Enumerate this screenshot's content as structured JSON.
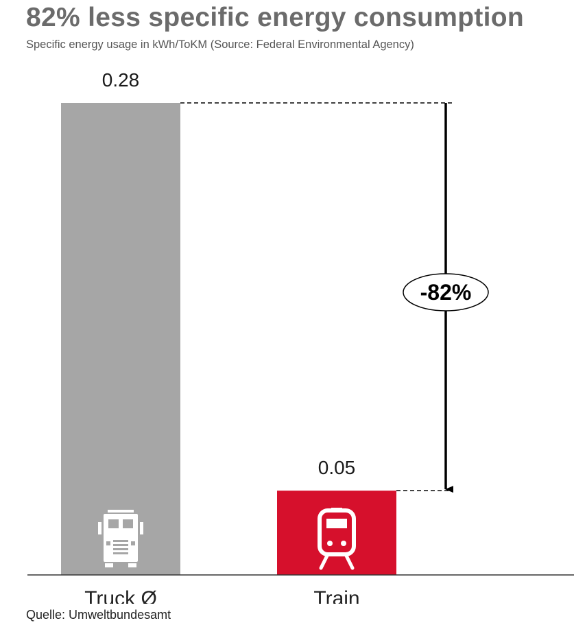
{
  "chart_data": {
    "type": "bar",
    "title": "82% less specific energy consumption",
    "subtitle": "Specific energy usage in kWh/ToKM (Source:  Federal Environmental Agency)",
    "categories": [
      "Truck Ø",
      "Train"
    ],
    "values": [
      0.28,
      0.05
    ],
    "value_labels": [
      "0.28",
      "0.05"
    ],
    "bar_colors": [
      "#a6a6a6",
      "#d6102c"
    ],
    "bar_icons": [
      "truck-icon",
      "train-icon"
    ],
    "annotation": "-82%",
    "ylim": [
      0,
      0.28
    ],
    "grid": false,
    "legend": "none"
  },
  "footer": {
    "source": "Quelle: Umweltbundesamt"
  }
}
